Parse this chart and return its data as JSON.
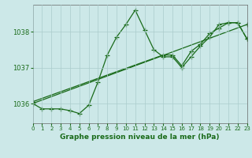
{
  "title": "Graphe pression niveau de la mer (hPa)",
  "background_color": "#cce8e8",
  "grid_color": "#aacccc",
  "line_color": "#1a6b1a",
  "xlim": [
    0,
    23
  ],
  "ylim": [
    1035.45,
    1038.75
  ],
  "xticks": [
    0,
    1,
    2,
    3,
    4,
    5,
    6,
    7,
    8,
    9,
    10,
    11,
    12,
    13,
    14,
    15,
    16,
    17,
    18,
    19,
    20,
    21,
    22,
    23
  ],
  "yticks": [
    1036,
    1037,
    1038
  ],
  "series": [
    {
      "x": [
        0,
        1,
        2,
        3,
        4,
        5,
        6,
        7,
        8,
        9,
        10,
        11,
        12,
        13,
        14,
        15,
        16,
        17,
        18,
        19,
        20,
        21,
        22,
        23
      ],
      "y": [
        1036.0,
        1035.85,
        1035.85,
        1035.85,
        1035.8,
        1035.72,
        1035.95,
        1036.6,
        1037.35,
        1037.85,
        1038.2,
        1038.6,
        1038.05,
        1037.5,
        1037.3,
        1037.3,
        1037.0,
        1037.3,
        1037.6,
        1037.85,
        1038.2,
        1038.25,
        1038.25,
        1037.8
      ]
    },
    {
      "x": [
        0,
        23
      ],
      "y": [
        1036.0,
        1038.2
      ]
    },
    {
      "x": [
        0,
        14,
        15,
        16,
        17,
        18,
        19,
        20,
        21,
        22,
        23
      ],
      "y": [
        1036.05,
        1037.35,
        1037.35,
        1037.05,
        1037.45,
        1037.65,
        1037.95,
        1038.1,
        1038.25,
        1038.25,
        1037.8
      ]
    }
  ]
}
